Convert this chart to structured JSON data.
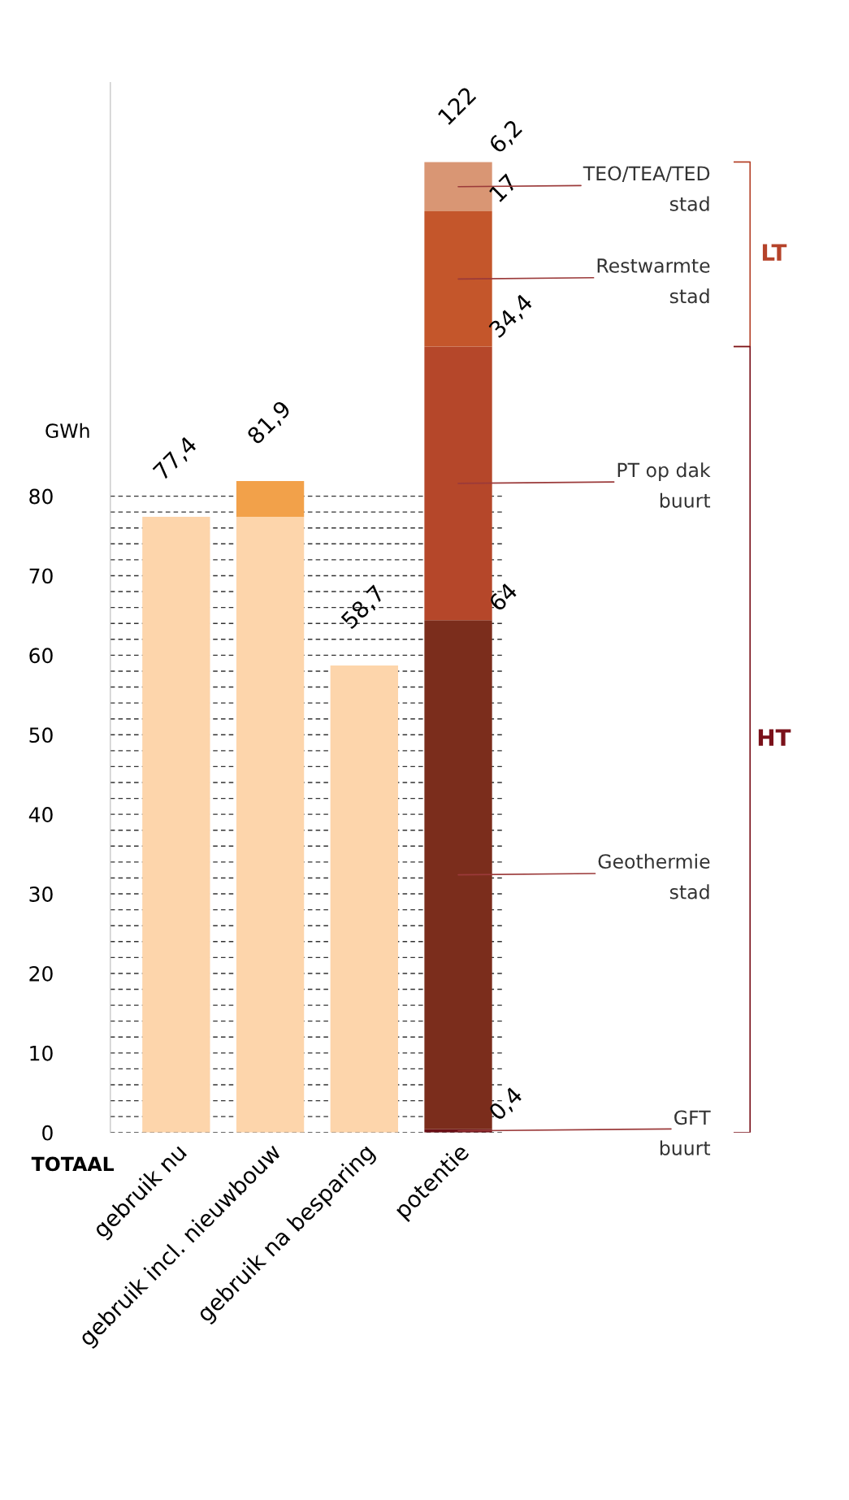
{
  "chart_data": {
    "type": "bar",
    "stacked": true,
    "ylabel": "GWh",
    "categories": [
      "gebruik nu",
      "gebruik incl. nieuwbouw",
      "gebruik na besparing",
      "potentie"
    ],
    "series": [
      {
        "color": "#fdd5ab",
        "values": [
          77.4,
          77.4,
          58.7,
          null
        ]
      },
      {
        "color": "#f2a14a",
        "values": [
          null,
          4.5,
          null,
          null
        ]
      },
      {
        "name": "GFT\nbuurt",
        "color": "#6b0f16",
        "values": [
          null,
          null,
          null,
          0.4
        ],
        "value_labels": [
          null,
          null,
          null,
          "0,4"
        ]
      },
      {
        "name": "Geothermie\nstad",
        "color": "#7b2d1c",
        "values": [
          null,
          null,
          null,
          64
        ],
        "value_labels": [
          null,
          null,
          null,
          "64"
        ]
      },
      {
        "name": "PT op dak\nbuurt",
        "color": "#b5472a",
        "values": [
          null,
          null,
          null,
          34.4
        ],
        "value_labels": [
          null,
          null,
          null,
          "34,4"
        ]
      },
      {
        "name": "Restwarmte\nstad",
        "color": "#c4562b",
        "values": [
          null,
          null,
          null,
          17
        ],
        "value_labels": [
          null,
          null,
          null,
          "17"
        ]
      },
      {
        "name": "TEO/TEA/TED\nstad",
        "color": "#d99674",
        "values": [
          null,
          null,
          null,
          6.2
        ],
        "value_labels": [
          null,
          null,
          null,
          "6,2"
        ]
      }
    ],
    "totals": [
      "77,4",
      "81,9",
      "58,7",
      "122"
    ],
    "ylim": [
      0,
      132
    ],
    "yticks": [
      0,
      {
        "value": 2,
        "label": null
      },
      {
        "value": 4,
        "label": null
      },
      {
        "value": 6,
        "label": null
      },
      {
        "value": 8,
        "label": null
      },
      10,
      {
        "value": 12,
        "label": null
      },
      {
        "value": 14,
        "label": null
      },
      {
        "value": 16,
        "label": null
      },
      {
        "value": 18,
        "label": null
      },
      20,
      {
        "value": 22,
        "label": null
      },
      {
        "value": 24,
        "label": null
      },
      {
        "value": 26,
        "label": null
      },
      {
        "value": 28,
        "label": null
      },
      30,
      {
        "value": 32,
        "label": null
      },
      {
        "value": 34,
        "label": null
      },
      {
        "value": 36,
        "label": null
      },
      {
        "value": 38,
        "label": null
      },
      40,
      {
        "value": 42,
        "label": null
      },
      {
        "value": 44,
        "label": null
      },
      {
        "value": 46,
        "label": null
      },
      {
        "value": 48,
        "label": null
      },
      50,
      {
        "value": 52,
        "label": null
      },
      {
        "value": 54,
        "label": null
      },
      {
        "value": 56,
        "label": null
      },
      {
        "value": 58,
        "label": null
      },
      60,
      {
        "value": 62,
        "label": null
      },
      {
        "value": 64,
        "label": null
      },
      {
        "value": 66,
        "label": null
      },
      {
        "value": 68,
        "label": null
      },
      70,
      {
        "value": 72,
        "label": null
      },
      {
        "value": 74,
        "label": null
      },
      {
        "value": 76,
        "label": null
      },
      {
        "value": 78,
        "label": null
      },
      80
    ],
    "grid": "y",
    "annotations": [
      "TOTAAL",
      "LT",
      "HT"
    ]
  }
}
